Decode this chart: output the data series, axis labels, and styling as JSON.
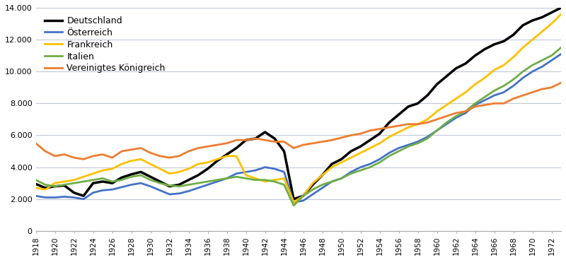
{
  "background_color": "#ffffff",
  "grid_color": "#c0c8d8",
  "legend_labels": [
    "Deutschland",
    "Österreich",
    "Frankreich",
    "Italien",
    "Vereinigtes Königreich"
  ],
  "line_colors": [
    "#000000",
    "#4472c4",
    "#ffc000",
    "#70ad47",
    "#ed7d31"
  ],
  "line_widths": [
    2.5,
    2.0,
    2.0,
    2.0,
    2.0
  ],
  "years": [
    1918,
    1919,
    1920,
    1921,
    1922,
    1923,
    1924,
    1925,
    1926,
    1927,
    1928,
    1929,
    1930,
    1931,
    1932,
    1933,
    1934,
    1935,
    1936,
    1937,
    1938,
    1939,
    1940,
    1941,
    1942,
    1943,
    1944,
    1945,
    1946,
    1947,
    1948,
    1949,
    1950,
    1951,
    1952,
    1953,
    1954,
    1955,
    1956,
    1957,
    1958,
    1959,
    1960,
    1961,
    1962,
    1963,
    1964,
    1965,
    1966,
    1967,
    1968,
    1969,
    1970,
    1971,
    1972,
    1973
  ],
  "Deutschland": [
    2950,
    2700,
    2800,
    2850,
    2400,
    2200,
    3000,
    3100,
    3000,
    3350,
    3550,
    3700,
    3400,
    3100,
    2800,
    2900,
    3200,
    3500,
    3900,
    4400,
    4800,
    5200,
    5700,
    5800,
    6200,
    5800,
    5000,
    2000,
    2200,
    2900,
    3500,
    4200,
    4500,
    5000,
    5300,
    5700,
    6100,
    6800,
    7300,
    7800,
    8000,
    8500,
    9200,
    9700,
    10200,
    10500,
    11000,
    11400,
    11700,
    11900,
    12300,
    12900,
    13200,
    13400,
    13700,
    14000
  ],
  "Oesterreich": [
    2200,
    2100,
    2100,
    2150,
    2100,
    2000,
    2400,
    2550,
    2600,
    2750,
    2900,
    3000,
    2800,
    2550,
    2300,
    2350,
    2500,
    2700,
    2900,
    3100,
    3300,
    3600,
    3700,
    3800,
    4000,
    3900,
    3700,
    1800,
    1900,
    2300,
    2700,
    3100,
    3300,
    3700,
    4000,
    4200,
    4500,
    4900,
    5200,
    5400,
    5600,
    5900,
    6300,
    6700,
    7100,
    7400,
    7900,
    8200,
    8500,
    8700,
    9100,
    9600,
    10000,
    10300,
    10700,
    11100
  ],
  "Frankreich": [
    2700,
    2600,
    3000,
    3100,
    3200,
    3400,
    3600,
    3800,
    3900,
    4200,
    4400,
    4500,
    4200,
    3900,
    3600,
    3700,
    3900,
    4200,
    4300,
    4500,
    4700,
    4700,
    3500,
    3300,
    3100,
    3200,
    3300,
    1800,
    2200,
    3000,
    3500,
    4000,
    4300,
    4600,
    4900,
    5200,
    5500,
    5900,
    6200,
    6500,
    6700,
    7000,
    7500,
    7900,
    8300,
    8700,
    9200,
    9600,
    10100,
    10400,
    10900,
    11500,
    12000,
    12500,
    13000,
    13600
  ],
  "Italien": [
    3200,
    2900,
    2800,
    2900,
    3000,
    3100,
    3200,
    3300,
    3100,
    3200,
    3400,
    3500,
    3200,
    3000,
    2850,
    2800,
    2900,
    3000,
    3100,
    3200,
    3300,
    3400,
    3300,
    3200,
    3200,
    3100,
    2900,
    1600,
    2200,
    2600,
    2900,
    3100,
    3300,
    3600,
    3800,
    4000,
    4300,
    4700,
    5000,
    5300,
    5500,
    5800,
    6300,
    6800,
    7200,
    7500,
    8000,
    8400,
    8800,
    9100,
    9500,
    10000,
    10400,
    10700,
    11000,
    11500
  ],
  "VK": [
    5500,
    5000,
    4700,
    4800,
    4600,
    4500,
    4700,
    4800,
    4600,
    5000,
    5100,
    5200,
    4900,
    4700,
    4600,
    4700,
    5000,
    5200,
    5300,
    5400,
    5500,
    5700,
    5700,
    5800,
    5700,
    5600,
    5600,
    5200,
    5400,
    5500,
    5600,
    5700,
    5850,
    6000,
    6100,
    6300,
    6400,
    6500,
    6600,
    6700,
    6700,
    6800,
    7000,
    7200,
    7400,
    7500,
    7800,
    7900,
    8000,
    8000,
    8300,
    8500,
    8700,
    8900,
    9000,
    9300
  ]
}
